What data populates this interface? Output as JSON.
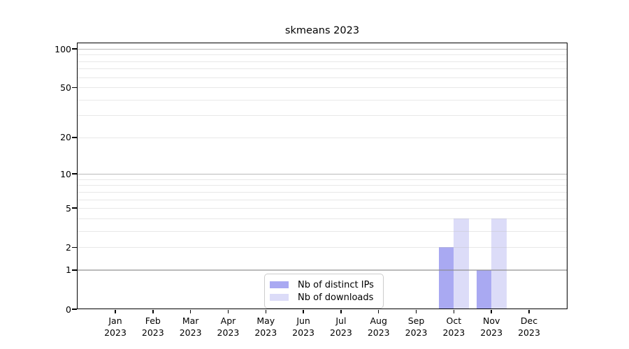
{
  "title": "skmeans 2023",
  "colors": {
    "background": "#ffffff",
    "spine": "#000000",
    "grid_major": "#c4c4c4",
    "grid_minor": "#ececec",
    "series_ips": "#a9a9f2",
    "series_downloads": "#dcdcf8",
    "legend_border": "#cccccc"
  },
  "legend": {
    "position": "bottom-center"
  },
  "chart_data": {
    "type": "bar",
    "title": "skmeans 2023",
    "categories": [
      "Jan",
      "Feb",
      "Mar",
      "Apr",
      "May",
      "Jun",
      "Jul",
      "Aug",
      "Sep",
      "Oct",
      "Nov",
      "Dec"
    ],
    "category_year": "2023",
    "series": [
      {
        "name": "Nb of distinct IPs",
        "color": "#a9a9f2",
        "values": [
          0,
          0,
          0,
          0,
          0,
          0,
          0,
          0,
          0,
          2,
          1,
          0
        ]
      },
      {
        "name": "Nb of downloads",
        "color": "#dcdcf8",
        "values": [
          0,
          0,
          0,
          0,
          0,
          0,
          0,
          0,
          0,
          4,
          4,
          0
        ]
      }
    ],
    "xlabel": "",
    "ylabel": "",
    "yscale": "log1p",
    "ylim": [
      0,
      100
    ],
    "yticks": [
      0,
      1,
      2,
      5,
      10,
      20,
      50,
      100
    ],
    "grid_major_values": [
      1,
      10,
      100
    ],
    "grid_minor_values": [
      2,
      3,
      4,
      5,
      6,
      7,
      8,
      9,
      20,
      30,
      40,
      50,
      60,
      70,
      80,
      90
    ],
    "grid": "horizontal",
    "legend_position": "bottom-center"
  }
}
